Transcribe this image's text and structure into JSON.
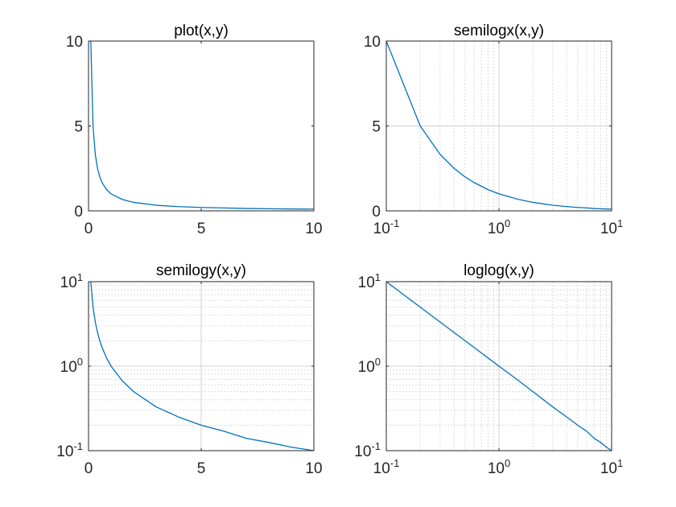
{
  "chart_data": [
    {
      "type": "line",
      "title": "plot(x,y)",
      "xscale": "linear",
      "yscale": "linear",
      "grid": "off",
      "xlim": [
        0,
        10
      ],
      "ylim": [
        0,
        10
      ],
      "xticks": [
        0,
        5,
        10
      ],
      "yticks": [
        0,
        5,
        10
      ],
      "xticklabels": [
        "0",
        "5",
        "10"
      ],
      "yticklabels": [
        "0",
        "5",
        "10"
      ],
      "series": [
        {
          "color": "#0072bd",
          "x": [
            0.1,
            0.2,
            0.3,
            0.4,
            0.5,
            0.6,
            0.8,
            1,
            1.5,
            2,
            3,
            4,
            5,
            6,
            7,
            8,
            9,
            10
          ],
          "y": [
            10,
            5,
            3.33,
            2.5,
            2,
            1.67,
            1.25,
            1,
            0.67,
            0.5,
            0.33,
            0.25,
            0.2,
            0.17,
            0.14,
            0.125,
            0.11,
            0.1
          ]
        }
      ]
    },
    {
      "type": "line",
      "title": "semilogx(x,y)",
      "xscale": "log",
      "yscale": "linear",
      "grid": "on",
      "xlim": [
        0.1,
        10
      ],
      "ylim": [
        0,
        10
      ],
      "xticks": [
        0.1,
        1,
        10
      ],
      "yticks": [
        0,
        5,
        10
      ],
      "xticklabels": [
        {
          "base": "10",
          "exp": "-1"
        },
        {
          "base": "10",
          "exp": "0"
        },
        {
          "base": "10",
          "exp": "1"
        }
      ],
      "yticklabels": [
        "0",
        "5",
        "10"
      ],
      "series": [
        {
          "color": "#0072bd",
          "x": [
            0.1,
            0.2,
            0.3,
            0.4,
            0.5,
            0.6,
            0.8,
            1,
            1.5,
            2,
            3,
            4,
            5,
            6,
            7,
            8,
            9,
            10
          ],
          "y": [
            10,
            5,
            3.33,
            2.5,
            2,
            1.67,
            1.25,
            1,
            0.67,
            0.5,
            0.33,
            0.25,
            0.2,
            0.17,
            0.14,
            0.125,
            0.11,
            0.1
          ]
        }
      ]
    },
    {
      "type": "line",
      "title": "semilogy(x,y)",
      "xscale": "linear",
      "yscale": "log",
      "grid": "on",
      "xlim": [
        0,
        10
      ],
      "ylim": [
        0.1,
        10
      ],
      "xticks": [
        0,
        5,
        10
      ],
      "yticks": [
        0.1,
        1,
        10
      ],
      "xticklabels": [
        "0",
        "5",
        "10"
      ],
      "yticklabels": [
        {
          "base": "10",
          "exp": "-1"
        },
        {
          "base": "10",
          "exp": "0"
        },
        {
          "base": "10",
          "exp": "1"
        }
      ],
      "series": [
        {
          "color": "#0072bd",
          "x": [
            0.1,
            0.2,
            0.3,
            0.4,
            0.5,
            0.6,
            0.8,
            1,
            1.5,
            2,
            3,
            4,
            5,
            6,
            7,
            8,
            9,
            10
          ],
          "y": [
            10,
            5,
            3.33,
            2.5,
            2,
            1.67,
            1.25,
            1,
            0.67,
            0.5,
            0.33,
            0.25,
            0.2,
            0.17,
            0.14,
            0.125,
            0.11,
            0.1
          ]
        }
      ]
    },
    {
      "type": "line",
      "title": "loglog(x,y)",
      "xscale": "log",
      "yscale": "log",
      "grid": "on",
      "xlim": [
        0.1,
        10
      ],
      "ylim": [
        0.1,
        10
      ],
      "xticks": [
        0.1,
        1,
        10
      ],
      "yticks": [
        0.1,
        1,
        10
      ],
      "xticklabels": [
        {
          "base": "10",
          "exp": "-1"
        },
        {
          "base": "10",
          "exp": "0"
        },
        {
          "base": "10",
          "exp": "1"
        }
      ],
      "yticklabels": [
        {
          "base": "10",
          "exp": "-1"
        },
        {
          "base": "10",
          "exp": "0"
        },
        {
          "base": "10",
          "exp": "1"
        }
      ],
      "series": [
        {
          "color": "#0072bd",
          "x": [
            0.1,
            0.2,
            0.3,
            0.4,
            0.5,
            0.6,
            0.8,
            1,
            1.5,
            2,
            3,
            4,
            5,
            6,
            7,
            8,
            9,
            10
          ],
          "y": [
            10,
            5,
            3.33,
            2.5,
            2,
            1.67,
            1.25,
            1,
            0.67,
            0.5,
            0.33,
            0.25,
            0.2,
            0.17,
            0.14,
            0.125,
            0.11,
            0.1
          ]
        }
      ]
    }
  ]
}
